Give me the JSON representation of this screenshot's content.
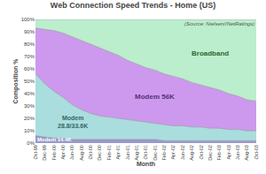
{
  "chart_data": {
    "type": "area",
    "stacked": true,
    "title": "Web Connection Speed Trends - Home (US)",
    "xlabel": "Month",
    "ylabel": "Composition %",
    "annotations": [
      "(Source: Nielsen//NetRatings)"
    ],
    "categories": [
      "Oct-99",
      "Dec-99",
      "Feb-00",
      "Apr-00",
      "Jun-00",
      "Aug-00",
      "Oct-00",
      "Dec-00",
      "Feb-01",
      "Apr-01",
      "Jun-01",
      "Aug-01",
      "Oct-01",
      "Dec-01",
      "Feb-02",
      "Apr-02",
      "Jun-02",
      "Aug-02",
      "Oct-02",
      "Dec-02",
      "Feb-03",
      "Apr-03",
      "Jun-03",
      "Aug-03",
      "Oct-03"
    ],
    "series": [
      {
        "name": "Modem 14.4K",
        "color": "#9999cc",
        "values": [
          6,
          5,
          4,
          4,
          3,
          3,
          3,
          3,
          3,
          3,
          3,
          3,
          3,
          3,
          2,
          2,
          2,
          2,
          2,
          2,
          2,
          2,
          2,
          2,
          2
        ]
      },
      {
        "name": "Modem\n28.8/33.6K",
        "color": "#aadddd",
        "values": [
          50,
          43,
          38,
          33,
          28,
          24,
          21,
          19,
          18,
          17,
          16,
          15,
          14,
          13,
          13,
          12,
          12,
          11,
          11,
          10,
          10,
          9,
          9,
          8,
          8
        ]
      },
      {
        "name": "Modem 56K",
        "color": "#cc99ee",
        "values": [
          37,
          44,
          49,
          52,
          55,
          56,
          56,
          55,
          53,
          51,
          48,
          46,
          44,
          43,
          41,
          40,
          38,
          36,
          34,
          33,
          31,
          29,
          27,
          25,
          24
        ]
      },
      {
        "name": "Broadband",
        "color": "#bbeecc",
        "values": [
          7,
          8,
          9,
          11,
          14,
          17,
          20,
          23,
          26,
          29,
          33,
          36,
          39,
          41,
          44,
          46,
          48,
          51,
          53,
          55,
          57,
          60,
          62,
          65,
          66
        ]
      }
    ],
    "ylim": [
      0,
      100
    ],
    "yticks": [
      {
        "value": 0,
        "label": "0%"
      },
      {
        "value": 10,
        "label": "10%"
      },
      {
        "value": 20,
        "label": "20%"
      },
      {
        "value": 30,
        "label": "30%"
      },
      {
        "value": 40,
        "label": "40%"
      },
      {
        "value": 50,
        "label": "50%"
      },
      {
        "value": 60,
        "label": "60%"
      },
      {
        "value": 70,
        "label": "70%"
      },
      {
        "value": 80,
        "label": "80%"
      },
      {
        "value": 90,
        "label": "90%"
      },
      {
        "value": 100,
        "label": "100%"
      }
    ],
    "grid": true
  }
}
